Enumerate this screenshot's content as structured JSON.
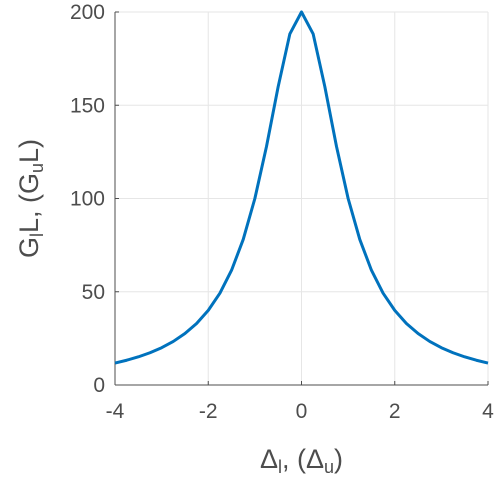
{
  "chart_data": {
    "type": "line",
    "xlabel": [
      "Δ",
      "l",
      ", (Δ",
      "u",
      ")"
    ],
    "ylabel": [
      "G",
      "l",
      "L, (G",
      "u",
      "L)"
    ],
    "x": [
      -4,
      -3.75,
      -3.5,
      -3.25,
      -3,
      -2.75,
      -2.5,
      -2.25,
      -2,
      -1.75,
      -1.5,
      -1.25,
      -1,
      -0.75,
      -0.5,
      -0.25,
      0,
      0.25,
      0.5,
      0.75,
      1,
      1.25,
      1.5,
      1.75,
      2,
      2.25,
      2.5,
      2.75,
      3,
      3.25,
      3.5,
      3.75,
      4
    ],
    "series": [
      {
        "color": "#0072bd",
        "values": [
          11.76,
          13.28,
          15.09,
          17.3,
          20,
          23.36,
          27.59,
          32.99,
          40,
          49.23,
          61.54,
          78.05,
          100,
          128,
          160,
          188.24,
          200,
          188.24,
          160,
          128,
          100,
          78.05,
          61.54,
          49.23,
          40,
          32.99,
          27.59,
          23.36,
          20,
          17.3,
          15.09,
          13.28,
          11.76
        ]
      }
    ],
    "xlim": [
      -4,
      4
    ],
    "xticks": [
      -4,
      -2,
      0,
      2,
      4
    ],
    "ylim": [
      0,
      200
    ],
    "yticks": [
      0,
      50,
      100,
      150,
      200
    ],
    "grid": true
  }
}
